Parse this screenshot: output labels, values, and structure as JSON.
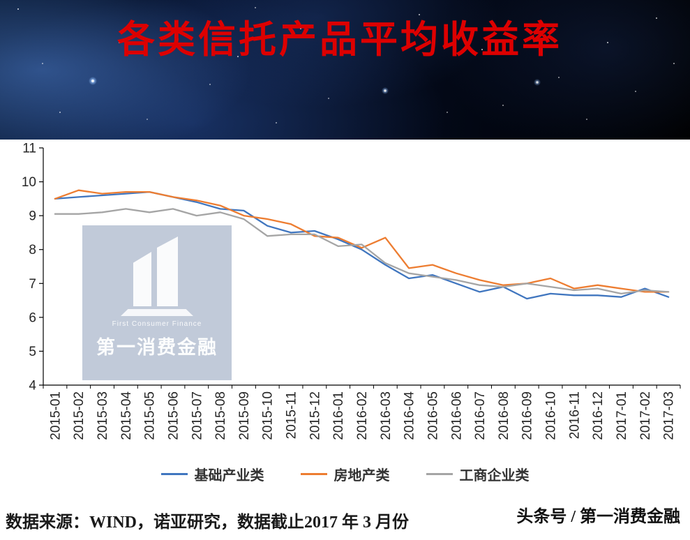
{
  "banner": {
    "title": "各类信托产品平均收益率",
    "title_color": "#dd0000"
  },
  "watermark": {
    "brand_en": "First Consumer Finance",
    "brand_cn": "第一消费金融"
  },
  "footer": {
    "source_text": "数据来源：WIND，诺亚研究，数据截止2017 年 3 月份",
    "credit_text": "头条号 / 第一消费金融"
  },
  "chart_data": {
    "type": "line",
    "title": "各类信托产品平均收益率",
    "xlabel": "",
    "ylabel": "",
    "ylim": [
      4,
      11
    ],
    "ytick_step": 1,
    "grid": false,
    "legend_position": "bottom",
    "xtick_rotation": 90,
    "categories": [
      "2015-01",
      "2015-02",
      "2015-03",
      "2015-04",
      "2015-05",
      "2015-06",
      "2015-07",
      "2015-08",
      "2015-09",
      "2015-10",
      "2015-11",
      "2015-12",
      "2016-01",
      "2016-02",
      "2016-03",
      "2016-04",
      "2016-05",
      "2016-06",
      "2016-07",
      "2016-08",
      "2016-09",
      "2016-10",
      "2016-11",
      "2016-12",
      "2017-01",
      "2017-02",
      "2017-03"
    ],
    "series": [
      {
        "name": "基础产业类",
        "color": "#4076bf",
        "values": [
          9.5,
          9.55,
          9.6,
          9.65,
          9.7,
          9.55,
          9.4,
          9.2,
          9.15,
          8.7,
          8.5,
          8.55,
          8.3,
          8.0,
          7.55,
          7.15,
          7.25,
          7.0,
          6.75,
          6.9,
          6.55,
          6.7,
          6.65,
          6.65,
          6.6,
          6.85,
          6.6
        ]
      },
      {
        "name": "房地产类",
        "color": "#ed7d31",
        "values": [
          9.5,
          9.75,
          9.65,
          9.7,
          9.7,
          9.55,
          9.45,
          9.3,
          9.0,
          8.9,
          8.75,
          8.4,
          8.35,
          8.05,
          8.35,
          7.45,
          7.55,
          7.3,
          7.1,
          6.95,
          7.0,
          7.15,
          6.85,
          6.95,
          6.85,
          6.75,
          6.75
        ]
      },
      {
        "name": "工商企业类",
        "color": "#a5a5a5",
        "values": [
          9.05,
          9.05,
          9.1,
          9.2,
          9.1,
          9.2,
          9.0,
          9.1,
          8.9,
          8.4,
          8.45,
          8.45,
          8.1,
          8.15,
          7.6,
          7.3,
          7.2,
          7.1,
          6.95,
          6.9,
          7.0,
          6.9,
          6.8,
          6.85,
          6.7,
          6.8,
          6.75
        ]
      }
    ]
  }
}
